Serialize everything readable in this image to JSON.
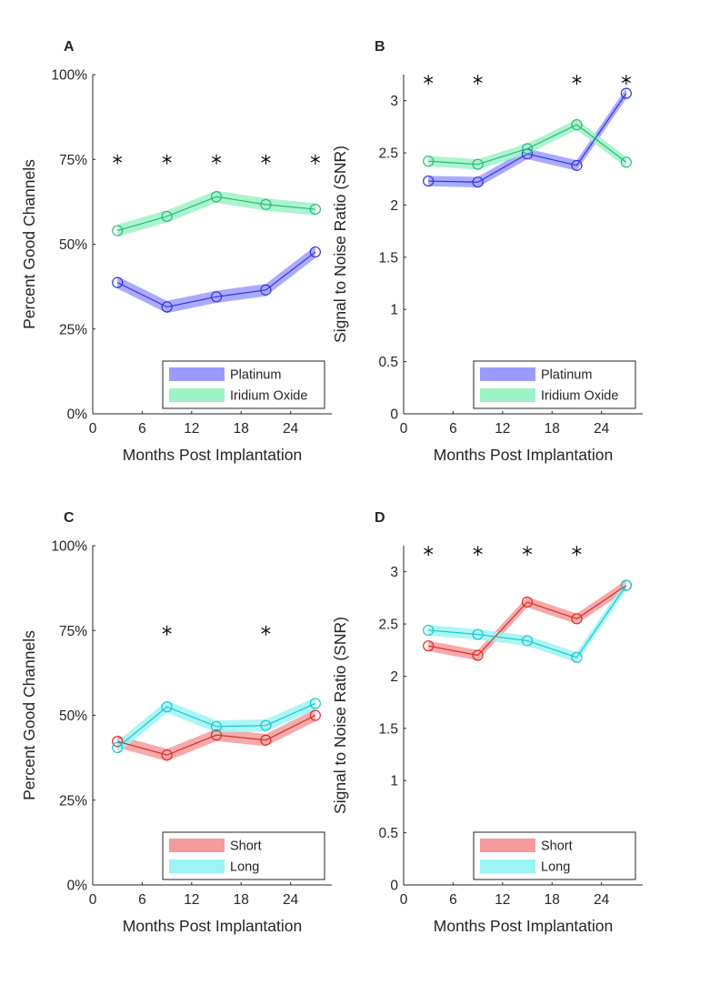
{
  "colors": {
    "platinum": "#3333e0",
    "platinum_band": "#9b9bff",
    "iridium": "#2bb87a",
    "iridium_band": "#9cf2c6",
    "short": "#d92b2b",
    "short_band": "#f59b9b",
    "long": "#1fc4cc",
    "long_band": "#9cf4f4",
    "axis": "#262626"
  },
  "chart_data": [
    {
      "panel": "A",
      "type": "line",
      "xlabel": "Months Post Implantation",
      "ylabel": "Percent Good Channels",
      "xlim": [
        0,
        29
      ],
      "ylim": [
        0,
        100
      ],
      "xticks": [
        0,
        6,
        12,
        18,
        24
      ],
      "yticks": [
        0,
        25,
        50,
        75,
        100
      ],
      "ytick_labels": [
        "0%",
        "25%",
        "50%",
        "75%",
        "100%"
      ],
      "legend": "bottom-right",
      "significance_x": [
        3,
        9,
        15,
        21,
        27
      ],
      "significance_y": 75,
      "series": [
        {
          "name": "Platinum",
          "color": "platinum",
          "band_color": "platinum_band",
          "band": 1.8,
          "x": [
            3,
            9,
            15,
            21,
            27
          ],
          "values": [
            38.7,
            31.5,
            34.5,
            36.5,
            47.7
          ]
        },
        {
          "name": "Iridium Oxide",
          "color": "iridium",
          "band_color": "iridium_band",
          "band": 1.8,
          "x": [
            3,
            9,
            15,
            21,
            27
          ],
          "values": [
            54.0,
            58.2,
            64.0,
            61.7,
            60.3
          ]
        }
      ]
    },
    {
      "panel": "B",
      "type": "line",
      "xlabel": "Months Post Implantation",
      "ylabel": "Signal to Noise Ratio (SNR)",
      "xlim": [
        0,
        29
      ],
      "ylim": [
        0,
        3.25
      ],
      "xticks": [
        0,
        6,
        12,
        18,
        24
      ],
      "yticks": [
        0,
        0.5,
        1,
        1.5,
        2,
        2.5,
        3
      ],
      "ytick_labels": [
        "0",
        "0.5",
        "1",
        "1.5",
        "2",
        "2.5",
        "3"
      ],
      "legend": "bottom-right",
      "significance_x": [
        3,
        9,
        21,
        27
      ],
      "significance_y": 3.2,
      "series": [
        {
          "name": "Platinum",
          "color": "platinum",
          "band_color": "platinum_band",
          "band": 0.05,
          "x": [
            3,
            9,
            15,
            21,
            27
          ],
          "values": [
            2.23,
            2.22,
            2.49,
            2.38,
            3.07
          ]
        },
        {
          "name": "Iridium Oxide",
          "color": "iridium",
          "band_color": "iridium_band",
          "band": 0.05,
          "x": [
            3,
            9,
            15,
            21,
            27
          ],
          "values": [
            2.42,
            2.39,
            2.54,
            2.77,
            2.41
          ]
        }
      ]
    },
    {
      "panel": "C",
      "type": "line",
      "xlabel": "Months Post Implantation",
      "ylabel": "Percent Good Channels",
      "xlim": [
        0,
        29
      ],
      "ylim": [
        0,
        100
      ],
      "xticks": [
        0,
        6,
        12,
        18,
        24
      ],
      "yticks": [
        0,
        25,
        50,
        75,
        100
      ],
      "ytick_labels": [
        "0%",
        "25%",
        "50%",
        "75%",
        "100%"
      ],
      "legend": "bottom-right",
      "significance_x": [
        9,
        21
      ],
      "significance_y": 75,
      "series": [
        {
          "name": "Short",
          "color": "short",
          "band_color": "short_band",
          "band": 1.8,
          "x": [
            3,
            9,
            15,
            21,
            27
          ],
          "values": [
            42.3,
            38.3,
            44.2,
            42.7,
            50.0
          ]
        },
        {
          "name": "Long",
          "color": "long",
          "band_color": "long_band",
          "band": 1.8,
          "x": [
            3,
            9,
            15,
            21,
            27
          ],
          "values": [
            40.5,
            52.5,
            46.7,
            47.0,
            53.5
          ]
        }
      ]
    },
    {
      "panel": "D",
      "type": "line",
      "xlabel": "Months Post Implantation",
      "ylabel": "Signal to Noise Ratio (SNR)",
      "xlim": [
        0,
        29
      ],
      "ylim": [
        0,
        3.25
      ],
      "xticks": [
        0,
        6,
        12,
        18,
        24
      ],
      "yticks": [
        0,
        0.5,
        1,
        1.5,
        2,
        2.5,
        3
      ],
      "ytick_labels": [
        "0",
        "0.5",
        "1",
        "1.5",
        "2",
        "2.5",
        "3"
      ],
      "legend": "bottom-right",
      "significance_x": [
        3,
        9,
        15,
        21
      ],
      "significance_y": 3.2,
      "series": [
        {
          "name": "Short",
          "color": "short",
          "band_color": "short_band",
          "band": 0.05,
          "x": [
            3,
            9,
            15,
            21,
            27
          ],
          "values": [
            2.29,
            2.2,
            2.71,
            2.55,
            2.87
          ]
        },
        {
          "name": "Long",
          "color": "long",
          "band_color": "long_band",
          "band": 0.05,
          "x": [
            3,
            9,
            15,
            21,
            27
          ],
          "values": [
            2.44,
            2.4,
            2.34,
            2.18,
            2.87
          ]
        }
      ]
    }
  ]
}
